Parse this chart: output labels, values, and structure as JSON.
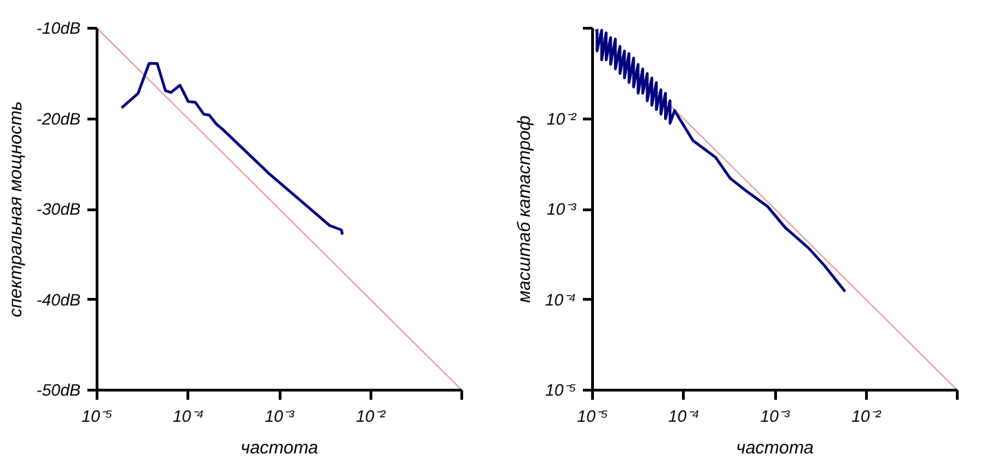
{
  "chart_data": [
    {
      "type": "line",
      "xlabel": "частота",
      "ylabel": "спектральная мощность",
      "log": "x",
      "grid": false,
      "marker": "none",
      "line_style": "solid",
      "xlim": [
        1e-05,
        0.1
      ],
      "ylim": [
        -50,
        -10
      ],
      "xticks": [
        {
          "value": 1e-05,
          "label": "10⁻⁵"
        },
        {
          "value": 0.0001,
          "label": "10⁻⁴"
        },
        {
          "value": 0.001,
          "label": "10⁻³"
        },
        {
          "value": 0.01,
          "label": "10⁻²"
        },
        {
          "value": 0.1,
          "label": null
        }
      ],
      "yticks": [
        {
          "value": -10,
          "label": "-10dB"
        },
        {
          "value": -20,
          "label": "-20dB"
        },
        {
          "value": -30,
          "label": "-30dB"
        },
        {
          "value": -40,
          "label": "-40dB"
        },
        {
          "value": -50,
          "label": "-50dB"
        }
      ],
      "series": [
        {
          "color": "#e8a0a0",
          "x": [
            1e-05,
            0.1
          ],
          "values": [
            -10,
            -50
          ]
        },
        {
          "color": "#000080",
          "x": [
            1.86e-05,
            2.82e-05,
            3.72e-05,
            4.57e-05,
            5.62e-05,
            6.46e-05,
            8.13e-05,
            0.0001,
            0.00012,
            0.000148,
            0.00017,
            0.000204,
            0.00024,
            0.000776,
            0.00251,
            0.00355,
            0.00479,
            0.0049
          ],
          "values": [
            -18.8,
            -17.2,
            -13.9,
            -13.9,
            -16.9,
            -17.1,
            -16.3,
            -18.1,
            -18.2,
            -19.5,
            -19.6,
            -20.6,
            -21.2,
            -26.1,
            -30.5,
            -31.8,
            -32.3,
            -32.8
          ]
        }
      ]
    },
    {
      "type": "line",
      "xlabel": "частота",
      "ylabel": "масштаб катастроф",
      "log": "xy",
      "grid": false,
      "marker": "none",
      "line_style": "solid",
      "xlim": [
        1e-05,
        0.1
      ],
      "ylim": [
        1e-05,
        0.1
      ],
      "xticks": [
        {
          "value": 1e-05,
          "label": "10⁻⁵"
        },
        {
          "value": 0.0001,
          "label": "10⁻⁴"
        },
        {
          "value": 0.001,
          "label": "10⁻³"
        },
        {
          "value": 0.01,
          "label": "10⁻²"
        },
        {
          "value": 0.1,
          "label": null
        }
      ],
      "yticks": [
        {
          "value": 1e-05,
          "label": "10⁻⁵"
        },
        {
          "value": 0.0001,
          "label": "10⁻⁴"
        },
        {
          "value": 0.001,
          "label": "10⁻³"
        },
        {
          "value": 0.01,
          "label": "10⁻²"
        },
        {
          "value": 0.1,
          "label": null
        }
      ],
      "series": [
        {
          "color": "#e8a0a0",
          "x": [
            1e-05,
            0.1
          ],
          "values": [
            0.1,
            1e-05
          ]
        },
        {
          "color": "#000080",
          "x": [
            1.12e-05,
            1.12e-05,
            1.26e-05,
            1.26e-05,
            1.41e-05,
            1.41e-05,
            1.58e-05,
            1.58e-05,
            1.78e-05,
            1.78e-05,
            2e-05,
            2e-05,
            2.24e-05,
            2.24e-05,
            2.51e-05,
            2.51e-05,
            2.82e-05,
            2.82e-05,
            3.16e-05,
            3.16e-05,
            3.55e-05,
            3.55e-05,
            3.98e-05,
            3.98e-05,
            4.47e-05,
            4.47e-05,
            5.01e-05,
            5.01e-05,
            5.62e-05,
            5.62e-05,
            6.31e-05,
            6.31e-05,
            7.08e-05,
            7.08e-05,
            7.94e-05,
            0.000126,
            0.000224,
            0.000324,
            0.000501,
            0.000832,
            0.00129,
            0.00234,
            0.00347,
            0.00589
          ],
          "values": [
            0.098,
            0.056,
            0.095,
            0.0447,
            0.089,
            0.0447,
            0.079,
            0.0398,
            0.076,
            0.0355,
            0.063,
            0.0316,
            0.056,
            0.0282,
            0.0525,
            0.0251,
            0.0468,
            0.0224,
            0.0398,
            0.0191,
            0.0355,
            0.0191,
            0.0316,
            0.0158,
            0.0282,
            0.0141,
            0.0251,
            0.0126,
            0.0209,
            0.0112,
            0.0191,
            0.01,
            0.0158,
            0.0089,
            0.0123,
            0.00575,
            0.00372,
            0.00219,
            0.00155,
            0.00107,
            0.00063,
            0.000372,
            0.00024,
            0.000123
          ]
        }
      ]
    }
  ]
}
